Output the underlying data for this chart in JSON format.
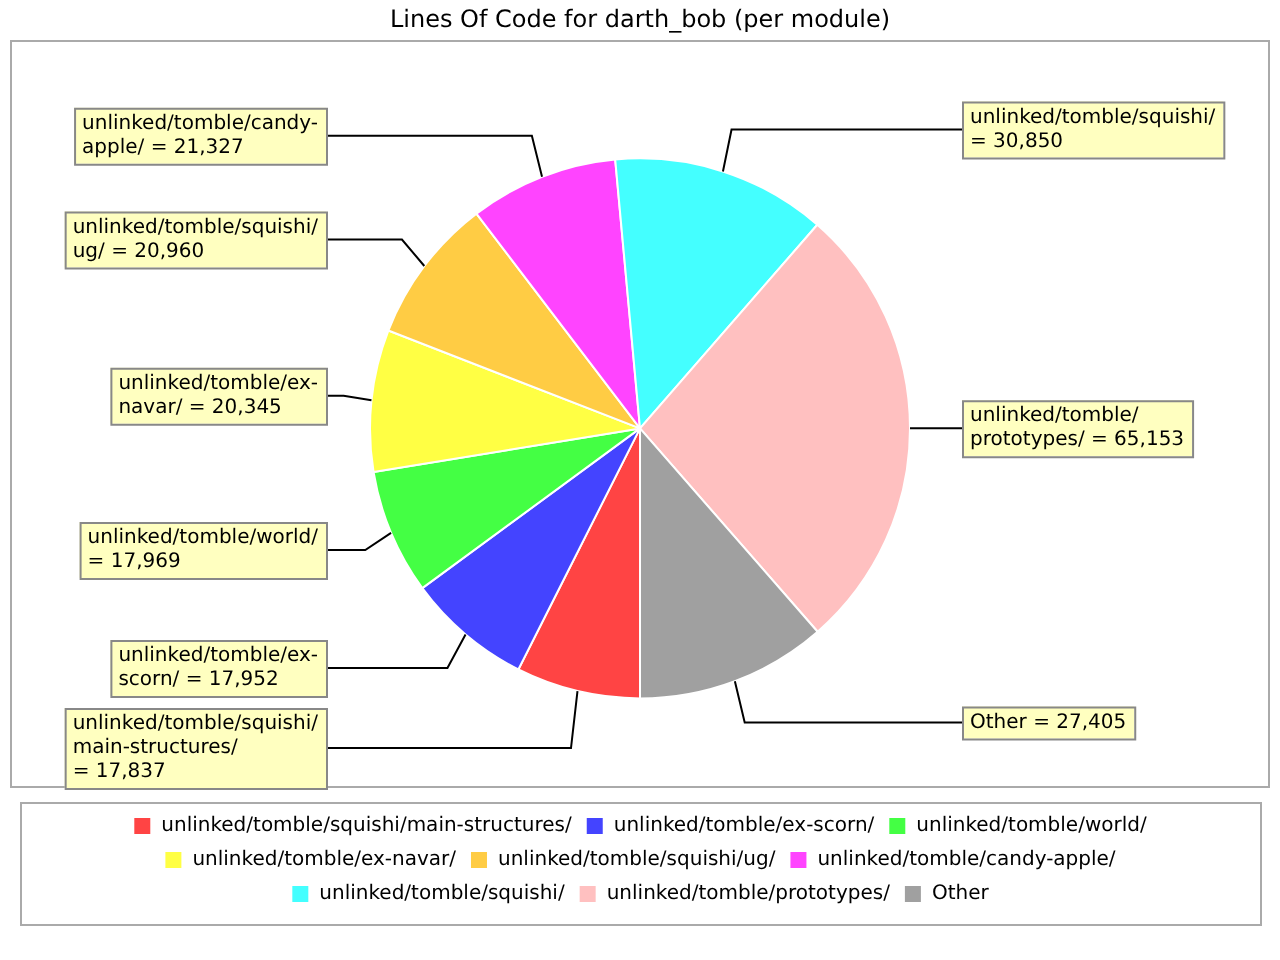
{
  "chart_data": {
    "type": "pie",
    "title": "Lines Of Code for darth_bob (per module)",
    "categories": [
      "unlinked/tomble/squishi/main-structures/",
      "unlinked/tomble/ex-scorn/",
      "unlinked/tomble/world/",
      "unlinked/tomble/ex-navar/",
      "unlinked/tomble/squishi/ug/",
      "unlinked/tomble/candy-apple/",
      "unlinked/tomble/squishi/",
      "unlinked/tomble/prototypes/",
      "Other"
    ],
    "values": [
      17837,
      17952,
      17969,
      20345,
      20960,
      21327,
      30850,
      65153,
      27405
    ],
    "colors": [
      "#ff4444",
      "#4444ff",
      "#44ff44",
      "#ffff44",
      "#ffcc44",
      "#ff44ff",
      "#44ffff",
      "#ffc0c0",
      "#a0a0a0"
    ],
    "value_labels": [
      "= 17,837",
      "= 17,952",
      "= 17,969",
      "= 20,345",
      "= 20,960",
      "= 21,327",
      "= 30,850",
      "= 65,153",
      "= 27,405"
    ],
    "legend": "bottom"
  }
}
